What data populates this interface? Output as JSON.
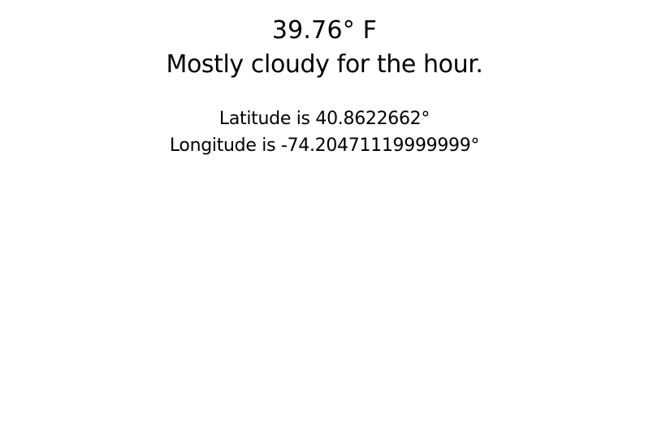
{
  "weather": {
    "temperature": "39.76° F",
    "summary": "Mostly cloudy for the hour."
  },
  "location": {
    "latitude_text": "Latitude is 40.8622662°",
    "longitude_text": "Longitude is -74.20471119999999°"
  }
}
